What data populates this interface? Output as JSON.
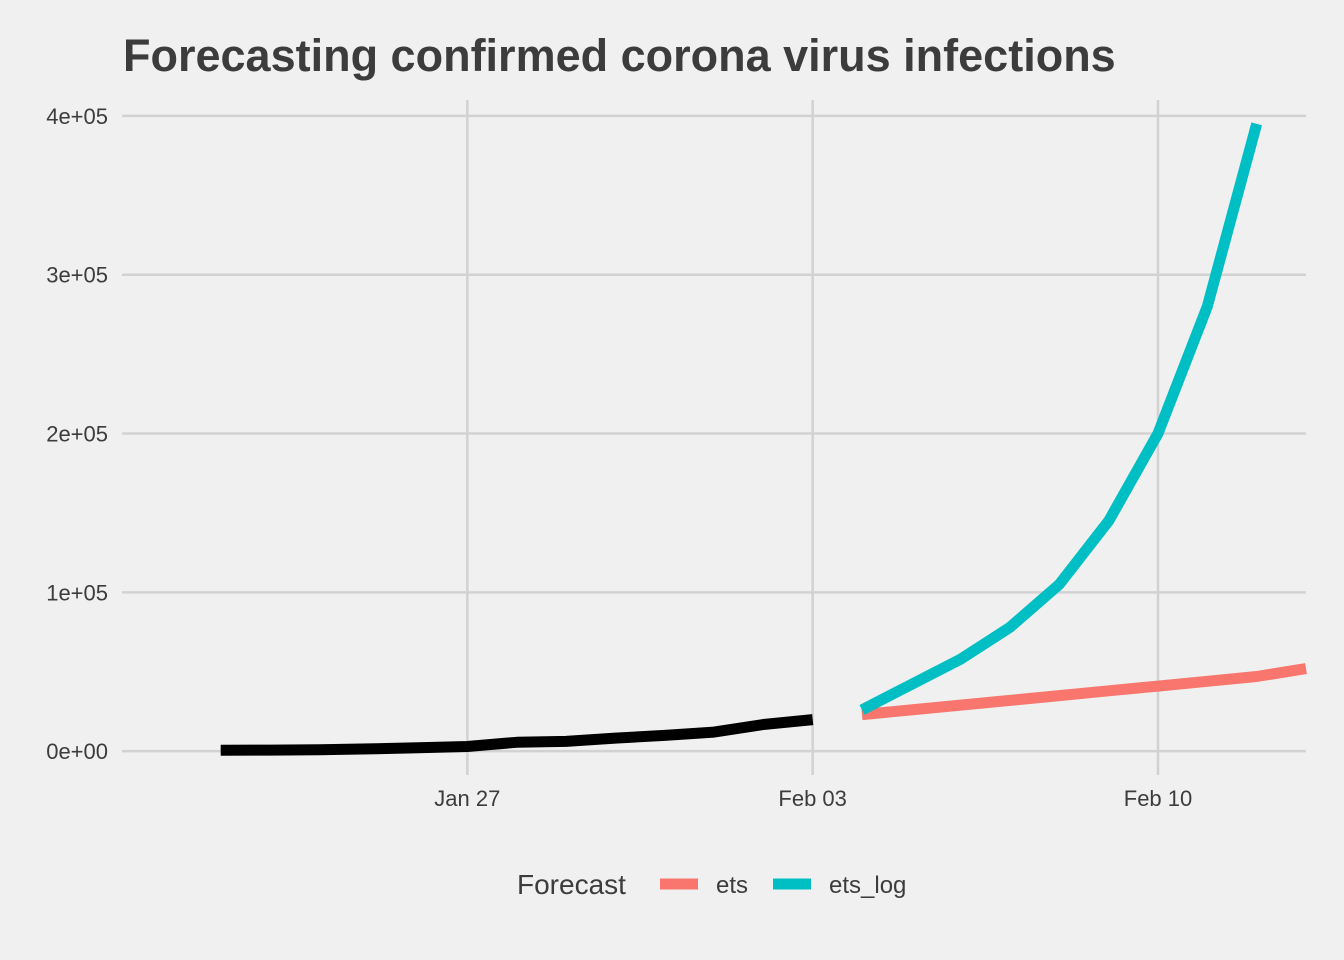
{
  "chart_data": {
    "type": "line",
    "title": "Forecasting confirmed corona virus infections",
    "xlabel": "",
    "ylabel": "",
    "x_axis": {
      "type": "date",
      "range": [
        "2020-01-20",
        "2020-02-13"
      ],
      "ticks": [
        {
          "date": "2020-01-27",
          "label": "Jan 27"
        },
        {
          "date": "2020-02-03",
          "label": "Feb 03"
        },
        {
          "date": "2020-02-10",
          "label": "Feb 10"
        }
      ]
    },
    "y_axis": {
      "range": [
        -15000,
        410000
      ],
      "ticks": [
        {
          "value": 0,
          "label": "0e+00"
        },
        {
          "value": 100000,
          "label": "1e+05"
        },
        {
          "value": 200000,
          "label": "2e+05"
        },
        {
          "value": 300000,
          "label": "3e+05"
        },
        {
          "value": 400000,
          "label": "4e+05"
        }
      ]
    },
    "grid": true,
    "legend": {
      "title": "Forecast",
      "position": "bottom"
    },
    "observed": {
      "color": "#000000",
      "points": [
        {
          "x": "2020-01-22",
          "y": 555
        },
        {
          "x": "2020-01-23",
          "y": 653
        },
        {
          "x": "2020-01-24",
          "y": 941
        },
        {
          "x": "2020-01-25",
          "y": 1434
        },
        {
          "x": "2020-01-26",
          "y": 2118
        },
        {
          "x": "2020-01-27",
          "y": 2927
        },
        {
          "x": "2020-01-28",
          "y": 5578
        },
        {
          "x": "2020-01-29",
          "y": 6166
        },
        {
          "x": "2020-01-30",
          "y": 8234
        },
        {
          "x": "2020-01-31",
          "y": 9927
        },
        {
          "x": "2020-02-01",
          "y": 12038
        },
        {
          "x": "2020-02-02",
          "y": 16787
        },
        {
          "x": "2020-02-03",
          "y": 19881
        }
      ]
    },
    "series": [
      {
        "name": "ets",
        "color": "#F8766D",
        "points": [
          {
            "x": "2020-02-04",
            "y": 23000
          },
          {
            "x": "2020-02-05",
            "y": 26000
          },
          {
            "x": "2020-02-06",
            "y": 29000
          },
          {
            "x": "2020-02-07",
            "y": 32000
          },
          {
            "x": "2020-02-08",
            "y": 35000
          },
          {
            "x": "2020-02-09",
            "y": 38000
          },
          {
            "x": "2020-02-10",
            "y": 41000
          },
          {
            "x": "2020-02-11",
            "y": 44000
          },
          {
            "x": "2020-02-12",
            "y": 47000
          },
          {
            "x": "2020-02-13",
            "y": 52000
          }
        ]
      },
      {
        "name": "ets_log",
        "color": "#00BFC4",
        "points": [
          {
            "x": "2020-02-04",
            "y": 26000
          },
          {
            "x": "2020-02-05",
            "y": 42000
          },
          {
            "x": "2020-02-06",
            "y": 58000
          },
          {
            "x": "2020-02-07",
            "y": 78000
          },
          {
            "x": "2020-02-08",
            "y": 105000
          },
          {
            "x": "2020-02-09",
            "y": 145000
          },
          {
            "x": "2020-02-10",
            "y": 200000
          },
          {
            "x": "2020-02-11",
            "y": 280000
          },
          {
            "x": "2020-02-12",
            "y": 395000
          }
        ]
      }
    ]
  }
}
